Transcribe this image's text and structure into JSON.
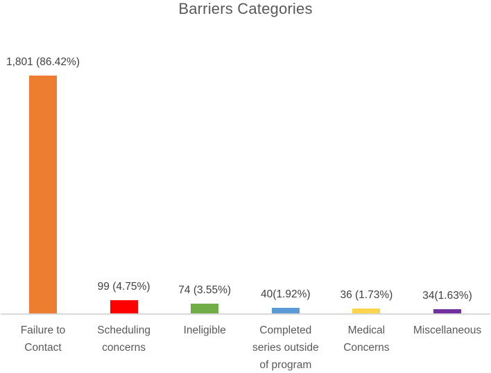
{
  "chart_data": {
    "type": "bar",
    "title": "Barriers Categories",
    "categories": [
      "Failure to Contact",
      "Scheduling concerns",
      "Ineligible",
      "Completed series outside of program",
      "Medical Concerns",
      "Miscellaneous"
    ],
    "category_label_lines": [
      [
        "Failure to",
        "Contact"
      ],
      [
        "Scheduling",
        "concerns"
      ],
      [
        "Ineligible"
      ],
      [
        "Completed",
        "series outside",
        "of program"
      ],
      [
        "Medical",
        "Concerns"
      ],
      [
        "Miscellaneous"
      ]
    ],
    "values": [
      1801,
      99,
      74,
      40,
      36,
      34
    ],
    "percentages": [
      86.42,
      4.75,
      3.55,
      1.92,
      1.73,
      1.63
    ],
    "data_labels": [
      "1,801 (86.42%)",
      "99 (4.75%)",
      "74 (3.55%)",
      "40(1.92%)",
      "36 (1.73%)",
      "34(1.63%)"
    ],
    "bar_colors": [
      "#ED7D31",
      "#FF0000",
      "#70AD47",
      "#5B9BD5",
      "#FFD44D",
      "#7030A0"
    ],
    "xlabel": "",
    "ylabel": "",
    "ylim": [
      0,
      1900
    ],
    "grid": false,
    "legend": false,
    "colors": {
      "title_text": "#595959",
      "data_label_text": "#404040",
      "category_label_text": "#595959",
      "axis_line": "#D9D9D9",
      "background": "#FFFFFF"
    }
  }
}
